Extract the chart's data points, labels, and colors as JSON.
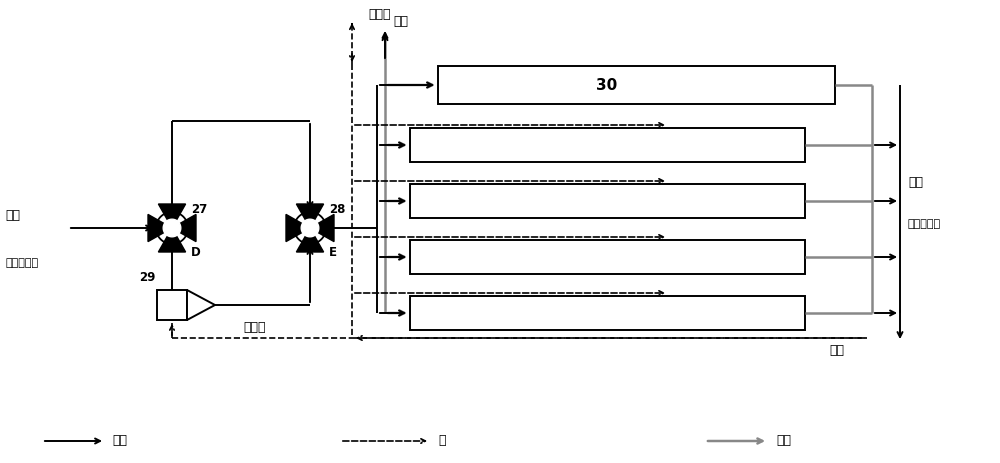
{
  "bg_color": "#ffffff",
  "fig_width": 10.0,
  "fig_height": 4.63,
  "dpi": 100,
  "labels": {
    "liquid_water": "液态水",
    "gas_water": "气态水",
    "heat_source_top": "热源",
    "heat_source_bottom": "热源",
    "fuel_in_1": "燃料",
    "fuel_in_2": "（反应物）",
    "fuel_out_1": "燃料",
    "fuel_out_2": "（生成物）",
    "node27": "27",
    "nodeD": "D",
    "node28": "28",
    "nodeE": "E",
    "node29": "29",
    "node30": "30",
    "legend_fuel": "燃料",
    "legend_water": "水",
    "legend_heat": "热源"
  },
  "colors": {
    "black": "#000000",
    "gray": "#888888",
    "white": "#ffffff"
  },
  "lw": {
    "main": 1.4,
    "gray": 1.8,
    "dashed": 1.2
  }
}
